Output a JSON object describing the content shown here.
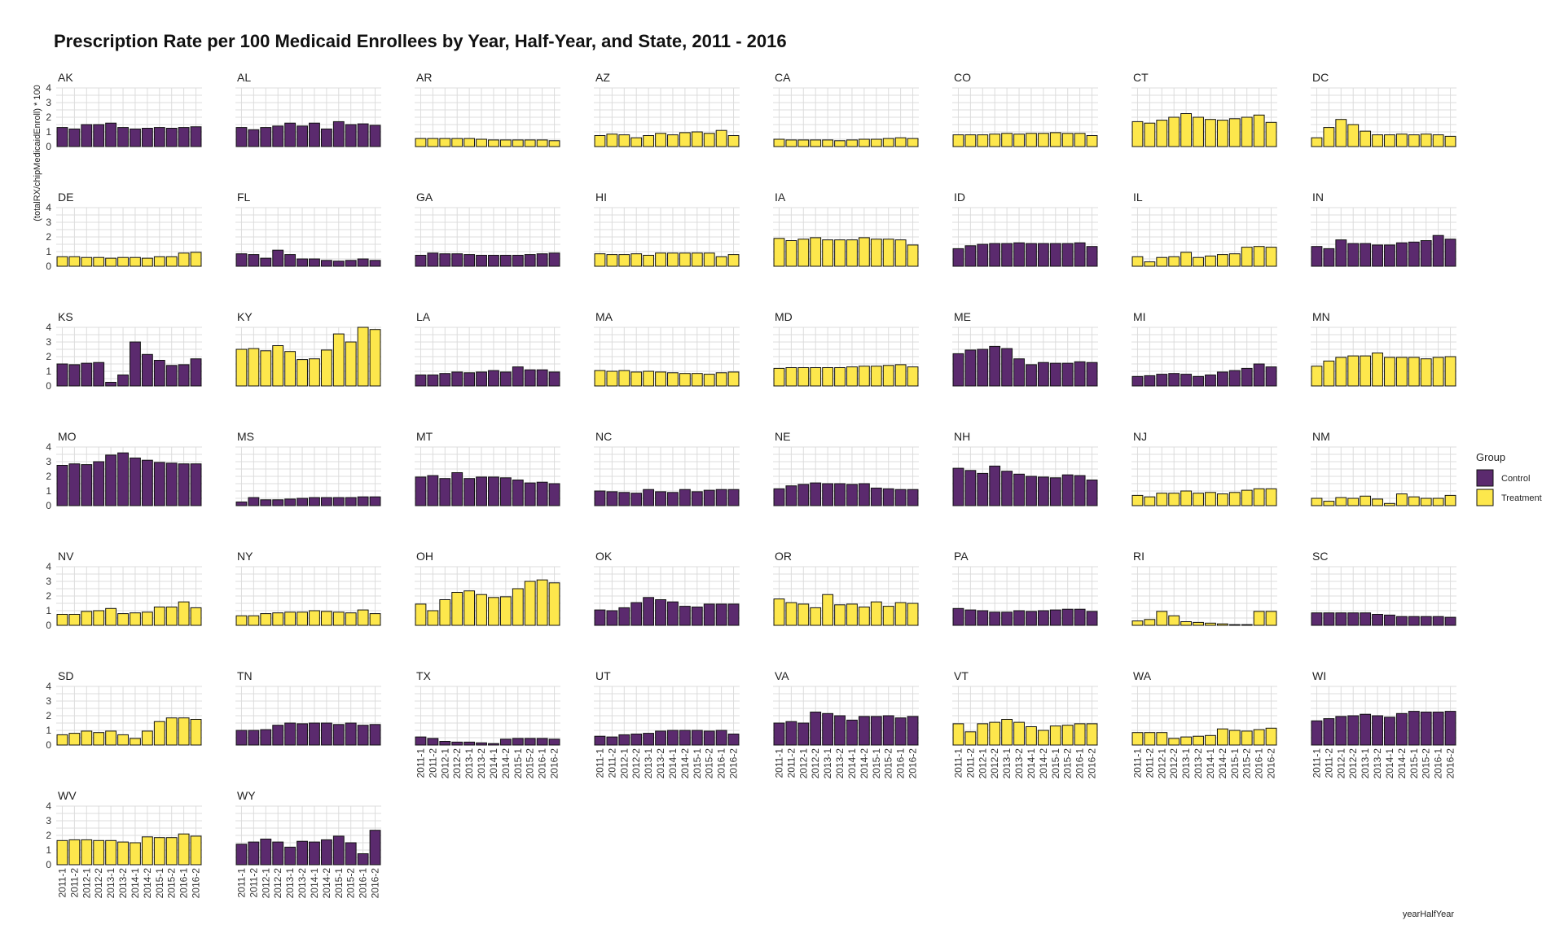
{
  "chart_data": {
    "type": "bar",
    "title": "Prescription Rate per 100 Medicaid Enrollees by Year, Half-Year, and State, 2011 - 2016",
    "xlabel": "yearHalfYear",
    "ylabel": "(totalRX/chipMedicaidEnroll) * 100",
    "ylim": [
      0,
      4
    ],
    "yticks": [
      0,
      1,
      2,
      3,
      4
    ],
    "categories": [
      "2011-1",
      "2011-2",
      "2012-1",
      "2012-2",
      "2013-1",
      "2013-2",
      "2014-1",
      "2014-2",
      "2015-1",
      "2015-2",
      "2016-1",
      "2016-2"
    ],
    "grid": true,
    "legend": {
      "title": "Group",
      "position": "right",
      "entries": [
        {
          "label": "Control",
          "color": "#5b2a6e"
        },
        {
          "label": "Treatment",
          "color": "#fde74c"
        }
      ]
    },
    "facets": [
      {
        "state": "AK",
        "group": "Control",
        "values": [
          1.3,
          1.2,
          1.5,
          1.5,
          1.6,
          1.3,
          1.2,
          1.25,
          1.3,
          1.25,
          1.3,
          1.35
        ]
      },
      {
        "state": "AL",
        "group": "Control",
        "values": [
          1.3,
          1.15,
          1.3,
          1.4,
          1.6,
          1.4,
          1.6,
          1.2,
          1.7,
          1.5,
          1.55,
          1.45
        ]
      },
      {
        "state": "AR",
        "group": "Treatment",
        "values": [
          0.55,
          0.55,
          0.55,
          0.55,
          0.55,
          0.5,
          0.45,
          0.45,
          0.45,
          0.45,
          0.45,
          0.4
        ]
      },
      {
        "state": "AZ",
        "group": "Treatment",
        "values": [
          0.75,
          0.85,
          0.8,
          0.6,
          0.75,
          0.9,
          0.8,
          0.95,
          1.0,
          0.9,
          1.1,
          0.75
        ]
      },
      {
        "state": "CA",
        "group": "Treatment",
        "values": [
          0.5,
          0.45,
          0.45,
          0.45,
          0.45,
          0.4,
          0.45,
          0.5,
          0.5,
          0.55,
          0.6,
          0.55
        ]
      },
      {
        "state": "CO",
        "group": "Treatment",
        "values": [
          0.8,
          0.8,
          0.8,
          0.85,
          0.9,
          0.85,
          0.9,
          0.9,
          0.95,
          0.9,
          0.9,
          0.75
        ]
      },
      {
        "state": "CT",
        "group": "Treatment",
        "values": [
          1.7,
          1.6,
          1.8,
          2.0,
          2.25,
          2.0,
          1.85,
          1.8,
          1.9,
          2.0,
          2.15,
          1.65
        ]
      },
      {
        "state": "DC",
        "group": "Treatment",
        "values": [
          0.6,
          1.3,
          1.85,
          1.5,
          1.05,
          0.8,
          0.8,
          0.85,
          0.8,
          0.85,
          0.8,
          0.7
        ]
      },
      {
        "state": "DE",
        "group": "Treatment",
        "values": [
          0.65,
          0.65,
          0.6,
          0.6,
          0.55,
          0.6,
          0.6,
          0.55,
          0.65,
          0.65,
          0.9,
          0.95
        ]
      },
      {
        "state": "FL",
        "group": "Control",
        "values": [
          0.85,
          0.8,
          0.55,
          1.1,
          0.8,
          0.5,
          0.5,
          0.4,
          0.35,
          0.4,
          0.5,
          0.4
        ]
      },
      {
        "state": "GA",
        "group": "Control",
        "values": [
          0.75,
          0.9,
          0.85,
          0.85,
          0.8,
          0.75,
          0.75,
          0.75,
          0.75,
          0.8,
          0.85,
          0.9
        ]
      },
      {
        "state": "HI",
        "group": "Treatment",
        "values": [
          0.85,
          0.8,
          0.8,
          0.85,
          0.75,
          0.9,
          0.9,
          0.9,
          0.9,
          0.9,
          0.65,
          0.8
        ]
      },
      {
        "state": "IA",
        "group": "Treatment",
        "values": [
          1.9,
          1.75,
          1.85,
          1.95,
          1.8,
          1.8,
          1.8,
          1.95,
          1.85,
          1.85,
          1.8,
          1.45
        ]
      },
      {
        "state": "ID",
        "group": "Control",
        "values": [
          1.2,
          1.4,
          1.5,
          1.55,
          1.55,
          1.6,
          1.55,
          1.55,
          1.55,
          1.55,
          1.6,
          1.35
        ]
      },
      {
        "state": "IL",
        "group": "Treatment",
        "values": [
          0.65,
          0.3,
          0.6,
          0.65,
          0.95,
          0.6,
          0.7,
          0.8,
          0.85,
          1.3,
          1.35,
          1.3
        ]
      },
      {
        "state": "IN",
        "group": "Control",
        "values": [
          1.35,
          1.2,
          1.8,
          1.55,
          1.55,
          1.45,
          1.45,
          1.6,
          1.65,
          1.75,
          2.1,
          1.85
        ]
      },
      {
        "state": "KS",
        "group": "Control",
        "values": [
          1.5,
          1.45,
          1.55,
          1.6,
          0.25,
          0.75,
          3.0,
          2.15,
          1.75,
          1.4,
          1.45,
          1.85
        ]
      },
      {
        "state": "KY",
        "group": "Treatment",
        "values": [
          2.5,
          2.55,
          2.4,
          2.75,
          2.35,
          1.8,
          1.85,
          2.45,
          3.55,
          3.0,
          4.0,
          3.85
        ]
      },
      {
        "state": "LA",
        "group": "Control",
        "values": [
          0.75,
          0.75,
          0.85,
          0.95,
          0.9,
          0.95,
          1.05,
          0.95,
          1.3,
          1.1,
          1.1,
          0.95
        ]
      },
      {
        "state": "MA",
        "group": "Treatment",
        "values": [
          1.05,
          1.0,
          1.05,
          0.95,
          1.0,
          0.95,
          0.9,
          0.85,
          0.85,
          0.8,
          0.9,
          0.95
        ]
      },
      {
        "state": "MD",
        "group": "Treatment",
        "values": [
          1.2,
          1.25,
          1.25,
          1.25,
          1.25,
          1.25,
          1.3,
          1.35,
          1.35,
          1.4,
          1.45,
          1.3
        ]
      },
      {
        "state": "ME",
        "group": "Control",
        "values": [
          2.2,
          2.45,
          2.5,
          2.7,
          2.55,
          1.85,
          1.45,
          1.6,
          1.55,
          1.55,
          1.65,
          1.6
        ]
      },
      {
        "state": "MI",
        "group": "Control",
        "values": [
          0.65,
          0.7,
          0.8,
          0.85,
          0.8,
          0.65,
          0.75,
          0.95,
          1.05,
          1.2,
          1.5,
          1.3
        ]
      },
      {
        "state": "MN",
        "group": "Treatment",
        "values": [
          1.35,
          1.7,
          1.95,
          2.05,
          2.05,
          2.25,
          1.95,
          1.95,
          1.95,
          1.85,
          1.95,
          2.0
        ]
      },
      {
        "state": "MO",
        "group": "Control",
        "values": [
          2.75,
          2.85,
          2.8,
          3.0,
          3.45,
          3.6,
          3.25,
          3.1,
          2.95,
          2.9,
          2.85,
          2.85
        ]
      },
      {
        "state": "MS",
        "group": "Control",
        "values": [
          0.25,
          0.55,
          0.4,
          0.4,
          0.45,
          0.5,
          0.55,
          0.55,
          0.55,
          0.55,
          0.6,
          0.6
        ]
      },
      {
        "state": "MT",
        "group": "Control",
        "values": [
          1.95,
          2.05,
          1.85,
          2.25,
          1.85,
          1.95,
          1.95,
          1.9,
          1.75,
          1.55,
          1.6,
          1.5
        ]
      },
      {
        "state": "NC",
        "group": "Control",
        "values": [
          1.0,
          0.95,
          0.9,
          0.85,
          1.1,
          0.95,
          0.9,
          1.1,
          0.95,
          1.05,
          1.1,
          1.1
        ]
      },
      {
        "state": "NE",
        "group": "Control",
        "values": [
          1.15,
          1.35,
          1.45,
          1.55,
          1.5,
          1.5,
          1.45,
          1.5,
          1.2,
          1.15,
          1.1,
          1.1
        ]
      },
      {
        "state": "NH",
        "group": "Control",
        "values": [
          2.55,
          2.4,
          2.2,
          2.7,
          2.35,
          2.15,
          2.0,
          1.95,
          1.9,
          2.1,
          2.05,
          1.75
        ]
      },
      {
        "state": "NJ",
        "group": "Treatment",
        "values": [
          0.7,
          0.6,
          0.85,
          0.85,
          1.0,
          0.85,
          0.9,
          0.8,
          0.9,
          1.05,
          1.15,
          1.15
        ]
      },
      {
        "state": "NM",
        "group": "Treatment",
        "values": [
          0.5,
          0.3,
          0.55,
          0.5,
          0.65,
          0.45,
          0.15,
          0.8,
          0.6,
          0.5,
          0.5,
          0.7
        ]
      },
      {
        "state": "NV",
        "group": "Treatment",
        "values": [
          0.75,
          0.75,
          0.95,
          1.0,
          1.15,
          0.8,
          0.85,
          0.9,
          1.25,
          1.25,
          1.6,
          1.2
        ]
      },
      {
        "state": "NY",
        "group": "Treatment",
        "values": [
          0.65,
          0.65,
          0.8,
          0.85,
          0.9,
          0.9,
          1.0,
          0.95,
          0.9,
          0.85,
          1.05,
          0.8
        ]
      },
      {
        "state": "OH",
        "group": "Treatment",
        "values": [
          1.45,
          1.0,
          1.75,
          2.25,
          2.35,
          2.1,
          1.9,
          1.95,
          2.5,
          3.0,
          3.1,
          2.9
        ]
      },
      {
        "state": "OK",
        "group": "Control",
        "values": [
          1.05,
          1.0,
          1.2,
          1.55,
          1.9,
          1.75,
          1.6,
          1.3,
          1.25,
          1.45,
          1.45,
          1.45
        ]
      },
      {
        "state": "OR",
        "group": "Treatment",
        "values": [
          1.8,
          1.55,
          1.45,
          1.2,
          2.1,
          1.4,
          1.45,
          1.25,
          1.6,
          1.3,
          1.55,
          1.5
        ]
      },
      {
        "state": "PA",
        "group": "Control",
        "values": [
          1.15,
          1.05,
          1.0,
          0.9,
          0.9,
          1.0,
          0.95,
          1.0,
          1.05,
          1.1,
          1.1,
          0.95
        ]
      },
      {
        "state": "RI",
        "group": "Treatment",
        "values": [
          0.3,
          0.4,
          0.95,
          0.65,
          0.25,
          0.2,
          0.15,
          0.1,
          0.05,
          0.05,
          0.95,
          0.95
        ]
      },
      {
        "state": "SC",
        "group": "Control",
        "values": [
          0.85,
          0.85,
          0.85,
          0.85,
          0.85,
          0.75,
          0.7,
          0.6,
          0.6,
          0.6,
          0.6,
          0.55
        ]
      },
      {
        "state": "SD",
        "group": "Treatment",
        "values": [
          0.7,
          0.8,
          0.95,
          0.85,
          0.95,
          0.7,
          0.45,
          0.95,
          1.6,
          1.85,
          1.85,
          1.75
        ]
      },
      {
        "state": "TN",
        "group": "Control",
        "values": [
          1.0,
          1.0,
          1.05,
          1.35,
          1.5,
          1.45,
          1.5,
          1.5,
          1.4,
          1.5,
          1.35,
          1.4
        ]
      },
      {
        "state": "TX",
        "group": "Control",
        "values": [
          0.55,
          0.45,
          0.25,
          0.2,
          0.2,
          0.15,
          0.1,
          0.4,
          0.45,
          0.45,
          0.45,
          0.4
        ]
      },
      {
        "state": "UT",
        "group": "Control",
        "values": [
          0.6,
          0.55,
          0.7,
          0.75,
          0.8,
          0.95,
          1.0,
          1.0,
          1.0,
          0.95,
          1.0,
          0.75
        ]
      },
      {
        "state": "VA",
        "group": "Control",
        "values": [
          1.5,
          1.6,
          1.5,
          2.25,
          2.15,
          2.0,
          1.7,
          1.95,
          1.95,
          2.0,
          1.85,
          1.95
        ]
      },
      {
        "state": "VT",
        "group": "Treatment",
        "values": [
          1.45,
          0.9,
          1.45,
          1.55,
          1.75,
          1.55,
          1.25,
          1.0,
          1.3,
          1.35,
          1.45,
          1.45
        ]
      },
      {
        "state": "WA",
        "group": "Treatment",
        "values": [
          0.85,
          0.85,
          0.85,
          0.45,
          0.55,
          0.6,
          0.65,
          1.1,
          1.0,
          0.95,
          1.05,
          1.15
        ]
      },
      {
        "state": "WI",
        "group": "Control",
        "values": [
          1.65,
          1.8,
          1.95,
          2.0,
          2.1,
          2.0,
          1.9,
          2.15,
          2.3,
          2.25,
          2.25,
          2.3
        ]
      },
      {
        "state": "WV",
        "group": "Treatment",
        "values": [
          1.65,
          1.7,
          1.7,
          1.65,
          1.65,
          1.55,
          1.5,
          1.9,
          1.85,
          1.85,
          2.1,
          1.95
        ]
      },
      {
        "state": "WY",
        "group": "Control",
        "values": [
          1.4,
          1.55,
          1.75,
          1.55,
          1.2,
          1.6,
          1.55,
          1.7,
          1.95,
          1.5,
          0.75,
          2.35
        ]
      }
    ]
  }
}
